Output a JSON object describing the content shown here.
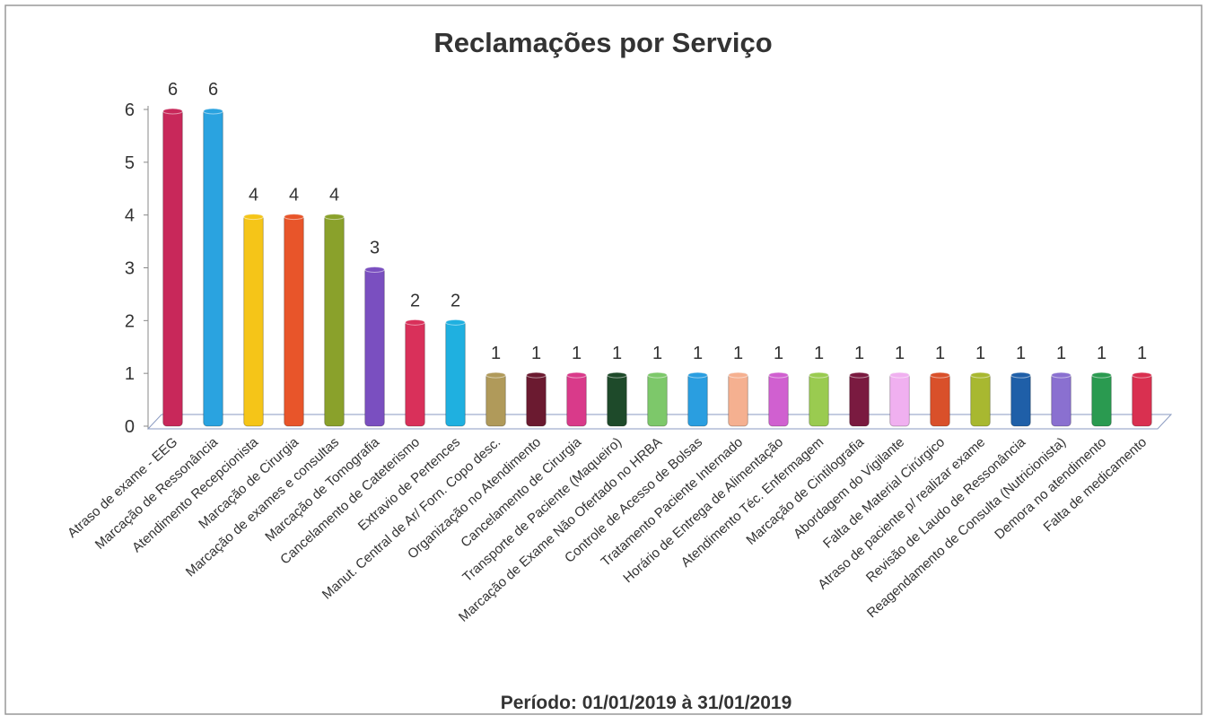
{
  "chart_data": {
    "type": "bar",
    "title": "Reclamações por Serviço",
    "subtitle": "Período: 01/01/2019 à 31/01/2019",
    "categories": [
      "Atraso de exame - EEG",
      "Marcação de Ressonância",
      "Atendimento Recepcionista",
      "Marcação de Cirurgia",
      "Marcação de exames e consultas",
      "Marcação de Tomografia",
      "Cancelamento de Cateterismo",
      "Extravio de Pertences",
      "Manut. Central de Ar/ Forn. Copo desc.",
      "Organização no Atendimento",
      "Cancelamento de Cirurgia",
      "Transporte de Paciente (Maqueiro)",
      "Marcação de Exame Não Ofertado no HRBA",
      "Controle de Acesso de Bolsas",
      "Tratamento Paciente Internado",
      "Horário de Entrega de Alimentação",
      "Atendimento Téc. Enfermagem",
      "Marcação de Cintilografia",
      "Abordagem do Vigilante",
      "Falta de Material Cirúrgico",
      "Atraso de paciente p/ realizar exame",
      "Revisão de Laudo de Ressonância",
      "Reagendamento de Consulta (Nutricionista)",
      "Demora no atendimento",
      "Falta de medicamento"
    ],
    "values": [
      6,
      6,
      4,
      4,
      4,
      3,
      2,
      2,
      1,
      1,
      1,
      1,
      1,
      1,
      1,
      1,
      1,
      1,
      1,
      1,
      1,
      1,
      1,
      1,
      1
    ],
    "colors": [
      "#c8285a",
      "#2aa3e0",
      "#f5c518",
      "#e8552a",
      "#8aa12b",
      "#7a4fc0",
      "#d9305a",
      "#1fb0e0",
      "#b09a5a",
      "#6b1a30",
      "#d93a8a",
      "#1e4a2a",
      "#7dc86a",
      "#2a9ee0",
      "#f5b090",
      "#d060d0",
      "#9acb50",
      "#7a1a40",
      "#f0b0f0",
      "#d9502a",
      "#a8b830",
      "#1f5fa8",
      "#8a70d0",
      "#2a9a50",
      "#d93050"
    ],
    "ylim": [
      0,
      6
    ],
    "yticks": [
      0,
      1,
      2,
      3,
      4,
      5,
      6
    ]
  }
}
